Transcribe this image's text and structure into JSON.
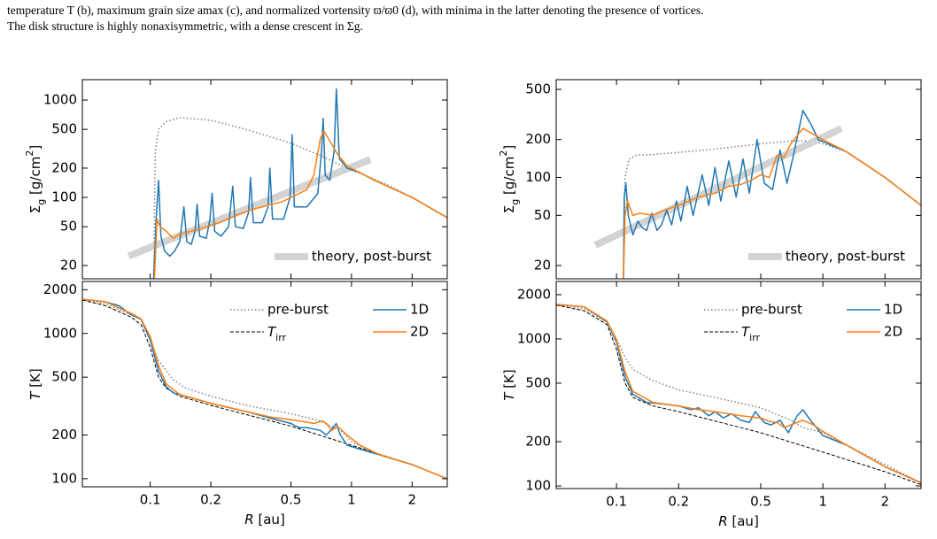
{
  "caption": [
    "temperature T (b), maximum grain size amax (c), and normalized vortensity ϖ/ϖ0 (d), with minima in the latter denoting the presence of vortices.",
    "The disk structure is highly nonaxisymmetric, with a dense crescent in Σg."
  ],
  "chart_data": [
    {
      "type": "line",
      "log_x": true,
      "log_y": true,
      "xlim": [
        0.046,
        2.99
      ],
      "ylim": [
        14.6,
        1620
      ],
      "xticks": [
        0.1,
        0.2,
        0.5,
        1,
        2
      ],
      "show_xtick_labels": false,
      "yticks": [
        20,
        50,
        100,
        200,
        500,
        1000
      ],
      "ylabel": [
        {
          "text": "Σ"
        },
        {
          "text": "g",
          "style": "sub"
        },
        {
          "text": " [g/cm"
        },
        {
          "text": "2",
          "style": "sup"
        },
        {
          "text": "]"
        }
      ],
      "legend": "lower right",
      "series": [
        {
          "color": "#808080",
          "linestyle": "dotted",
          "linewidth": 1.5,
          "x": [
            0.104,
            0.106,
            0.11,
            0.12,
            0.14,
            0.2,
            0.3,
            0.5,
            0.7,
            0.9,
            1.0,
            1.2,
            1.5,
            2.0,
            2.99
          ],
          "values": [
            15,
            300,
            500,
            600,
            660,
            620,
            500,
            360,
            270,
            210,
            190,
            165,
            135,
            100,
            62
          ]
        },
        {
          "name": "theory, post-burst",
          "color": "#d3d3d3",
          "linestyle": "solid",
          "linewidth": 8,
          "x": [
            0.078,
            1.24
          ],
          "values": [
            25,
            245
          ]
        },
        {
          "color": "#1f77b4",
          "linestyle": "solid",
          "linewidth": 1.5,
          "x": [
            0.104,
            0.107,
            0.11,
            0.113,
            0.118,
            0.125,
            0.132,
            0.14,
            0.147,
            0.152,
            0.16,
            0.167,
            0.171,
            0.176,
            0.19,
            0.198,
            0.203,
            0.209,
            0.225,
            0.245,
            0.257,
            0.265,
            0.29,
            0.308,
            0.315,
            0.325,
            0.36,
            0.385,
            0.393,
            0.405,
            0.46,
            0.495,
            0.507,
            0.52,
            0.6,
            0.68,
            0.71,
            0.723,
            0.74,
            0.78,
            0.82,
            0.841,
            0.87,
            0.95,
            1.1,
            1.3,
            2.0,
            2.99
          ],
          "values": [
            14.6,
            60,
            150,
            40,
            28,
            25,
            28,
            35,
            80,
            35,
            33,
            45,
            85,
            40,
            38,
            60,
            110,
            45,
            40,
            50,
            130,
            50,
            48,
            70,
            160,
            55,
            55,
            80,
            200,
            60,
            60,
            100,
            440,
            80,
            80,
            110,
            300,
            650,
            170,
            150,
            300,
            1300,
            250,
            200,
            180,
            150,
            100,
            62
          ]
        },
        {
          "color": "#ff7f0e",
          "linestyle": "solid",
          "linewidth": 1.5,
          "x": [
            0.105,
            0.108,
            0.112,
            0.12,
            0.13,
            0.14,
            0.16,
            0.18,
            0.2,
            0.22,
            0.25,
            0.28,
            0.32,
            0.36,
            0.4,
            0.45,
            0.5,
            0.55,
            0.6,
            0.65,
            0.7,
            0.73,
            0.78,
            0.85,
            0.95,
            1.1,
            1.3,
            2.0,
            2.99
          ],
          "values": [
            15,
            60,
            50,
            45,
            38,
            42,
            45,
            48,
            52,
            55,
            62,
            68,
            75,
            80,
            85,
            90,
            100,
            110,
            120,
            170,
            400,
            480,
            380,
            280,
            210,
            180,
            150,
            100,
            62
          ]
        }
      ]
    },
    {
      "type": "line",
      "log_x": true,
      "log_y": true,
      "xlim": [
        0.046,
        2.99
      ],
      "ylim": [
        88,
        2280
      ],
      "xticks": [
        0.1,
        0.2,
        0.5,
        1,
        2
      ],
      "show_xtick_labels": true,
      "yticks": [
        100,
        200,
        500,
        1000,
        2000
      ],
      "xlabel": [
        {
          "text": "R",
          "style": "italic"
        },
        {
          "text": " [au]"
        }
      ],
      "ylabel": [
        {
          "text": "T",
          "style": "italic"
        },
        {
          "text": " [K]"
        }
      ],
      "legend": "upper right",
      "legend_columns": 2,
      "series": [
        {
          "name": "pre-burst",
          "color": "#808080",
          "linestyle": "dotted",
          "linewidth": 1.5,
          "x": [
            0.046,
            0.06,
            0.08,
            0.09,
            0.1,
            0.11,
            0.13,
            0.15,
            0.2,
            0.3,
            0.5,
            0.7,
            0.9,
            1.0,
            1.3,
            2,
            2.99
          ],
          "values": [
            1700,
            1600,
            1350,
            1250,
            900,
            650,
            480,
            420,
            370,
            320,
            280,
            250,
            210,
            180,
            150,
            125,
            100
          ]
        },
        {
          "name": [
            {
              "text": "T",
              "style": "italic"
            },
            {
              "text": "irr",
              "style": "sub"
            }
          ],
          "color": "#000000",
          "linestyle": "dashed",
          "linewidth": 1,
          "x": [
            0.046,
            0.06,
            0.08,
            0.09,
            0.1,
            0.11,
            0.12,
            0.14,
            0.2,
            0.5,
            1.0,
            2,
            2.99
          ],
          "values": [
            1700,
            1550,
            1300,
            1150,
            800,
            500,
            420,
            370,
            320,
            230,
            170,
            125,
            100
          ]
        },
        {
          "name": "1D",
          "color": "#1f77b4",
          "linestyle": "solid",
          "linewidth": 1.5,
          "x": [
            0.046,
            0.06,
            0.07,
            0.08,
            0.09,
            0.1,
            0.11,
            0.12,
            0.13,
            0.15,
            0.2,
            0.3,
            0.4,
            0.5,
            0.53,
            0.55,
            0.6,
            0.7,
            0.75,
            0.8,
            0.84,
            0.88,
            0.95,
            1.1,
            1.4,
            2,
            2.99
          ],
          "values": [
            1720,
            1650,
            1550,
            1350,
            1250,
            900,
            550,
            430,
            390,
            370,
            330,
            290,
            260,
            240,
            230,
            225,
            225,
            215,
            200,
            220,
            240,
            200,
            170,
            160,
            145,
            125,
            100
          ]
        },
        {
          "name": "2D",
          "color": "#ff7f0e",
          "linestyle": "solid",
          "linewidth": 1.5,
          "x": [
            0.046,
            0.06,
            0.08,
            0.09,
            0.1,
            0.11,
            0.12,
            0.14,
            0.2,
            0.3,
            0.4,
            0.5,
            0.6,
            0.65,
            0.72,
            0.75,
            0.8,
            0.85,
            0.95,
            1.1,
            1.4,
            2,
            2.99
          ],
          "values": [
            1720,
            1650,
            1380,
            1260,
            950,
            600,
            450,
            380,
            330,
            290,
            265,
            255,
            245,
            240,
            250,
            240,
            215,
            230,
            200,
            170,
            145,
            125,
            100
          ]
        }
      ]
    },
    {
      "type": "line",
      "log_x": true,
      "log_y": true,
      "xlim": [
        0.051,
        2.99
      ],
      "ylim": [
        15.7,
        597
      ],
      "xticks": [
        0.1,
        0.2,
        0.5,
        1,
        2
      ],
      "show_xtick_labels": false,
      "yticks": [
        20,
        50,
        100,
        200,
        500
      ],
      "ylabel": [
        {
          "text": "Σ"
        },
        {
          "text": "g",
          "style": "sub"
        },
        {
          "text": " [g/cm"
        },
        {
          "text": "2",
          "style": "sup"
        },
        {
          "text": "]"
        }
      ],
      "legend": "lower right",
      "series": [
        {
          "color": "#808080",
          "linestyle": "dotted",
          "linewidth": 1.5,
          "x": [
            0.108,
            0.11,
            0.115,
            0.125,
            0.15,
            0.2,
            0.3,
            0.5,
            0.7,
            0.85,
            1.0,
            1.3,
            2,
            2.99
          ],
          "values": [
            15.7,
            100,
            140,
            150,
            152,
            158,
            168,
            185,
            195,
            195,
            185,
            160,
            100,
            60
          ]
        },
        {
          "name": "theory, post-burst",
          "color": "#d3d3d3",
          "linestyle": "solid",
          "linewidth": 8,
          "x": [
            0.079,
            1.23
          ],
          "values": [
            29,
            245
          ]
        },
        {
          "color": "#1f77b4",
          "linestyle": "solid",
          "linewidth": 1.5,
          "x": [
            0.108,
            0.109,
            0.111,
            0.114,
            0.12,
            0.127,
            0.133,
            0.14,
            0.148,
            0.157,
            0.165,
            0.175,
            0.185,
            0.195,
            0.205,
            0.22,
            0.235,
            0.26,
            0.28,
            0.3,
            0.32,
            0.35,
            0.38,
            0.41,
            0.44,
            0.48,
            0.52,
            0.57,
            0.62,
            0.67,
            0.72,
            0.8,
            0.88,
            0.95,
            1.1,
            1.3,
            2,
            2.99
          ],
          "values": [
            15.7,
            70,
            90,
            50,
            35,
            45,
            40,
            38,
            52,
            38,
            42,
            55,
            42,
            65,
            45,
            85,
            50,
            105,
            60,
            120,
            65,
            135,
            70,
            140,
            75,
            200,
            90,
            80,
            165,
            90,
            150,
            340,
            260,
            200,
            180,
            160,
            100,
            60
          ]
        },
        {
          "color": "#ff7f0e",
          "linestyle": "solid",
          "linewidth": 1.5,
          "x": [
            0.108,
            0.11,
            0.113,
            0.12,
            0.13,
            0.15,
            0.17,
            0.2,
            0.25,
            0.3,
            0.35,
            0.4,
            0.45,
            0.5,
            0.55,
            0.6,
            0.65,
            0.7,
            0.8,
            0.9,
            1.0,
            1.3,
            2,
            2.99
          ],
          "values": [
            15.7,
            50,
            65,
            50,
            52,
            50,
            55,
            60,
            70,
            75,
            85,
            88,
            95,
            105,
            100,
            150,
            145,
            185,
            245,
            220,
            200,
            160,
            100,
            60
          ]
        }
      ]
    },
    {
      "type": "line",
      "log_x": true,
      "log_y": true,
      "xlim": [
        0.051,
        2.99
      ],
      "ylim": [
        96,
        2460
      ],
      "xticks": [
        0.1,
        0.2,
        0.5,
        1,
        2
      ],
      "show_xtick_labels": true,
      "yticks": [
        100,
        200,
        500,
        1000,
        2000
      ],
      "xlabel": [
        {
          "text": "R",
          "style": "italic"
        },
        {
          "text": " [au]"
        }
      ],
      "ylabel": [
        {
          "text": "T",
          "style": "italic"
        },
        {
          "text": " [K]"
        }
      ],
      "legend": "upper right",
      "legend_columns": 2,
      "series": [
        {
          "name": "pre-burst",
          "color": "#808080",
          "linestyle": "dotted",
          "linewidth": 1.5,
          "x": [
            0.051,
            0.07,
            0.09,
            0.1,
            0.11,
            0.12,
            0.15,
            0.2,
            0.3,
            0.5,
            0.7,
            0.8,
            1.0,
            1.3,
            2,
            2.99
          ],
          "values": [
            1700,
            1600,
            1300,
            1000,
            750,
            620,
            520,
            450,
            400,
            340,
            280,
            250,
            230,
            190,
            140,
            105
          ]
        },
        {
          "name": [
            {
              "text": "T",
              "style": "italic"
            },
            {
              "text": "irr",
              "style": "sub"
            }
          ],
          "color": "#000000",
          "linestyle": "dashed",
          "linewidth": 1,
          "x": [
            0.051,
            0.07,
            0.09,
            0.1,
            0.11,
            0.12,
            0.15,
            0.2,
            0.5,
            1.0,
            2,
            2.99
          ],
          "values": [
            1700,
            1550,
            1250,
            850,
            500,
            400,
            350,
            320,
            230,
            170,
            125,
            102
          ]
        },
        {
          "name": "1D",
          "color": "#1f77b4",
          "linestyle": "solid",
          "linewidth": 1.5,
          "x": [
            0.051,
            0.07,
            0.09,
            0.1,
            0.11,
            0.12,
            0.14,
            0.17,
            0.2,
            0.23,
            0.25,
            0.28,
            0.3,
            0.33,
            0.36,
            0.4,
            0.44,
            0.47,
            0.52,
            0.56,
            0.62,
            0.68,
            0.75,
            0.8,
            0.87,
            1.0,
            1.3,
            2,
            2.99
          ],
          "values": [
            1720,
            1650,
            1300,
            950,
            550,
            420,
            370,
            360,
            350,
            330,
            340,
            300,
            320,
            290,
            310,
            280,
            270,
            320,
            270,
            260,
            280,
            230,
            300,
            330,
            280,
            220,
            190,
            135,
            105
          ]
        },
        {
          "name": "2D",
          "color": "#ff7f0e",
          "linestyle": "solid",
          "linewidth": 1.5,
          "x": [
            0.051,
            0.07,
            0.09,
            0.1,
            0.11,
            0.12,
            0.15,
            0.2,
            0.25,
            0.3,
            0.4,
            0.5,
            0.55,
            0.6,
            0.65,
            0.7,
            0.8,
            0.9,
            1.0,
            1.3,
            2,
            2.99
          ],
          "values": [
            1720,
            1650,
            1320,
            980,
            600,
            440,
            370,
            350,
            330,
            320,
            300,
            290,
            275,
            270,
            250,
            260,
            280,
            260,
            235,
            190,
            135,
            105
          ]
        }
      ]
    }
  ]
}
